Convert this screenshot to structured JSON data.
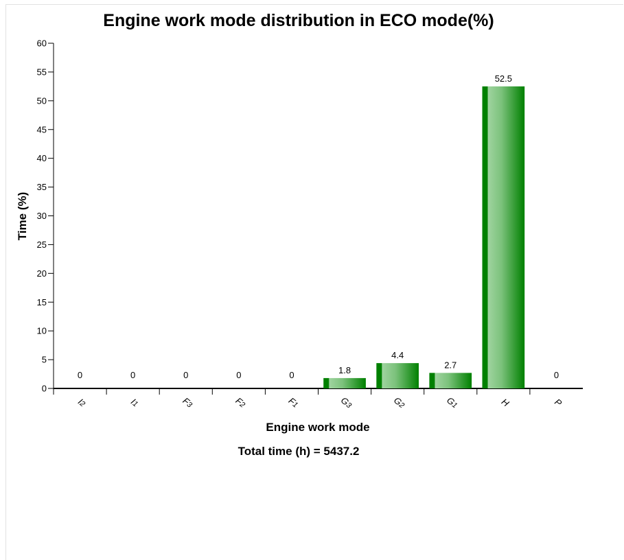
{
  "chart_data": {
    "type": "bar",
    "title": "Engine work mode distribution in ECO mode(%)",
    "xlabel": "Engine work mode",
    "ylabel": "Time (%)",
    "categories": [
      {
        "label": "I",
        "sub": "2"
      },
      {
        "label": "I",
        "sub": "1"
      },
      {
        "label": "F",
        "sub": "3"
      },
      {
        "label": "F",
        "sub": "2"
      },
      {
        "label": "F",
        "sub": "1"
      },
      {
        "label": "G",
        "sub": "3"
      },
      {
        "label": "G",
        "sub": "2"
      },
      {
        "label": "G",
        "sub": "1"
      },
      {
        "label": "H",
        "sub": ""
      },
      {
        "label": "P",
        "sub": ""
      }
    ],
    "values": [
      0,
      0,
      0,
      0,
      0,
      1.8,
      4.4,
      2.7,
      52.5,
      0
    ],
    "value_labels": [
      "0",
      "0",
      "0",
      "0",
      "0",
      "1.8",
      "4.4",
      "2.7",
      "52.5",
      "0"
    ],
    "ylim": [
      0,
      60
    ],
    "yticks": [
      0,
      5,
      10,
      15,
      20,
      25,
      30,
      35,
      40,
      45,
      50,
      55,
      60
    ],
    "grid": false,
    "bar_color": "#008000",
    "bar_highlight": "#b8e0b8",
    "footnote": "Total time (h) = 5437.2"
  }
}
